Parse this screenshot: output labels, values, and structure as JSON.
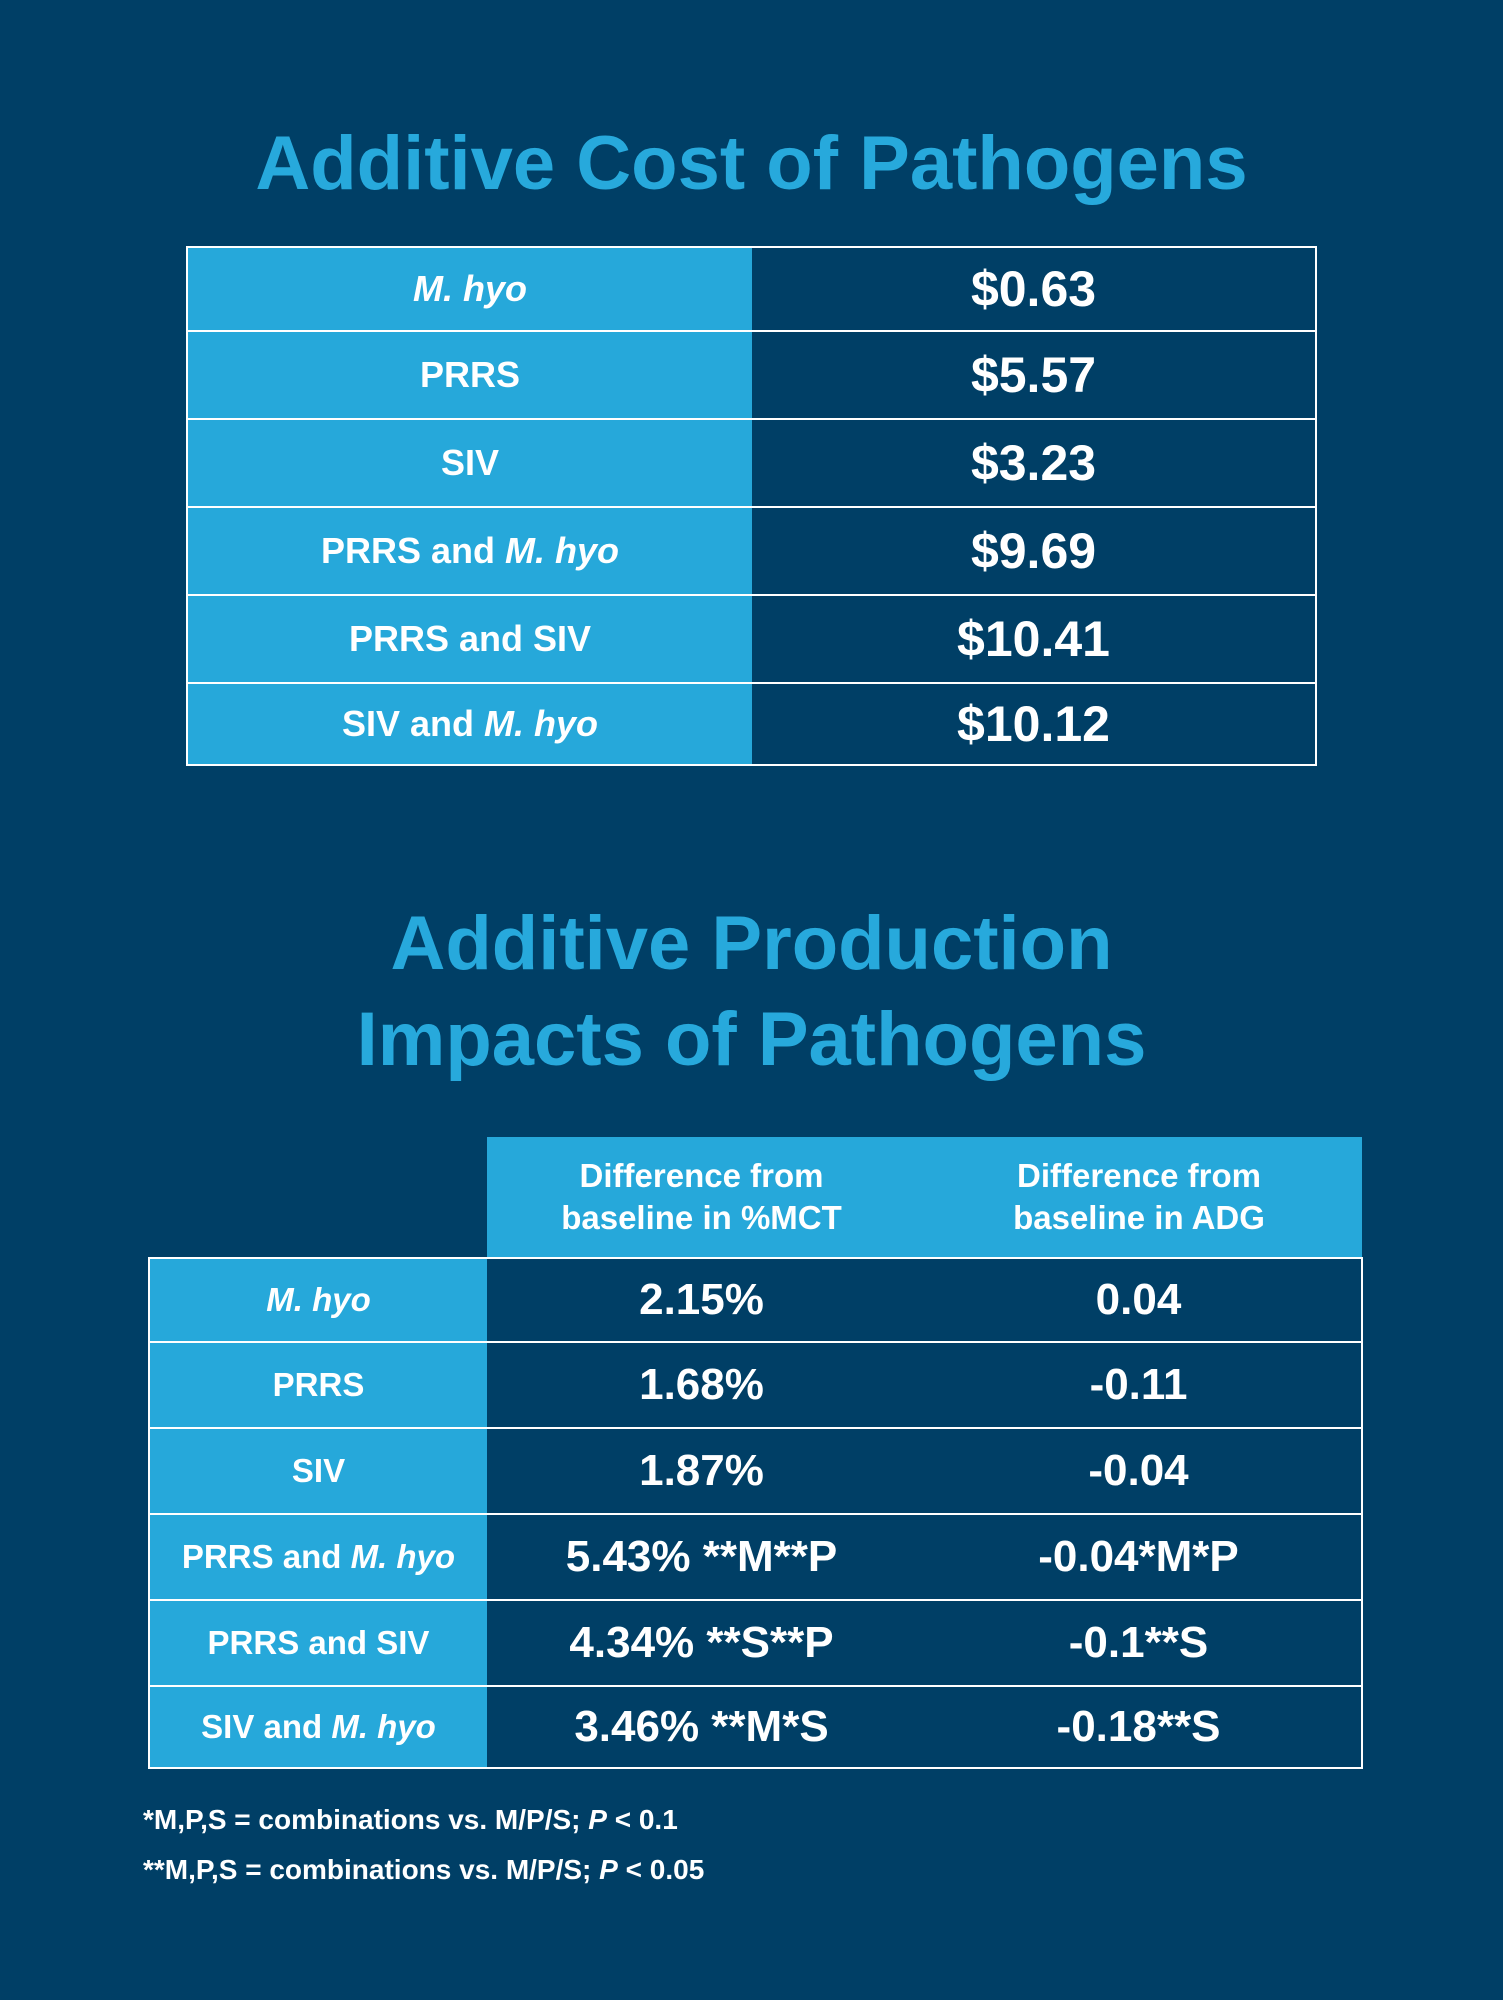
{
  "colors": {
    "background": "#003f66",
    "accent": "#27a9dc",
    "label_cell": "#26a8da",
    "text": "#ffffff"
  },
  "chart_data": [
    {
      "type": "table",
      "title": "Additive Cost of Pathogens",
      "rows": [
        {
          "label_plain": "",
          "label_italic": "M. hyo",
          "value": "$0.63"
        },
        {
          "label_plain": "PRRS",
          "label_italic": "",
          "value": "$5.57"
        },
        {
          "label_plain": "SIV",
          "label_italic": "",
          "value": "$3.23"
        },
        {
          "label_plain": "PRRS and ",
          "label_italic": "M. hyo",
          "value": "$9.69"
        },
        {
          "label_plain": "PRRS and SIV",
          "label_italic": "",
          "value": "$10.41"
        },
        {
          "label_plain": "SIV and ",
          "label_italic": "M. hyo",
          "value": "$10.12"
        }
      ]
    },
    {
      "type": "table",
      "title_line1": "Additive Production",
      "title_line2": "Impacts of Pathogens",
      "columns": [
        {
          "line1": "Difference from",
          "line2": "baseline in %MCT"
        },
        {
          "line1": "Difference from",
          "line2": "baseline in ADG"
        }
      ],
      "rows": [
        {
          "label_plain": "",
          "label_italic": "M. hyo",
          "mct": "2.15%",
          "adg": "0.04"
        },
        {
          "label_plain": "PRRS",
          "label_italic": "",
          "mct": "1.68%",
          "adg": "-0.11"
        },
        {
          "label_plain": "SIV",
          "label_italic": "",
          "mct": "1.87%",
          "adg": "-0.04"
        },
        {
          "label_plain": "PRRS and ",
          "label_italic": "M. hyo",
          "mct": "5.43% **M**P",
          "adg": "-0.04*M*P"
        },
        {
          "label_plain": "PRRS and SIV",
          "label_italic": "",
          "mct": "4.34% **S**P",
          "adg": "-0.1**S"
        },
        {
          "label_plain": "SIV and ",
          "label_italic": "M. hyo",
          "mct": "3.46% **M*S",
          "adg": "-0.18**S"
        }
      ],
      "footnotes": [
        {
          "prefix": "*M,P,S = combinations vs. M/P/S; ",
          "italic": "P",
          "suffix": " < 0.1"
        },
        {
          "prefix": "**M,P,S = combinations vs. M/P/S; ",
          "italic": "P",
          "suffix": " < 0.05"
        }
      ]
    }
  ]
}
